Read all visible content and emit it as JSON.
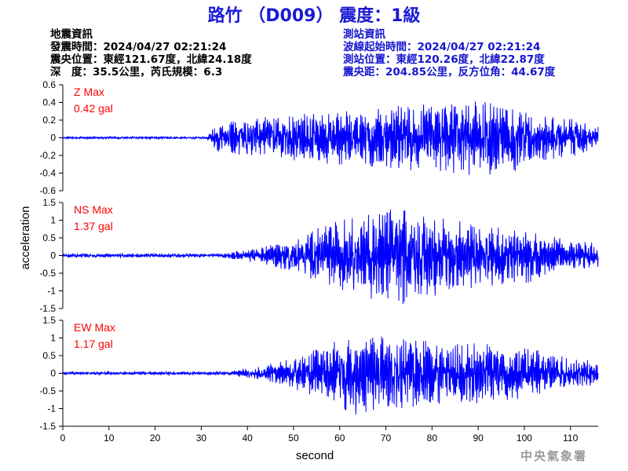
{
  "title": "路竹 （D009） 震度：1級",
  "colors": {
    "title": "#1a1ad6",
    "event": "#000000",
    "station": "#1515d0",
    "trace": "#0000ff",
    "label": "#ff0000",
    "agency": "#9a9a9a"
  },
  "event_info": {
    "heading": "地震資訊",
    "time": "發震時間：2024/04/27 02:21:24",
    "location": "震央位置：東經121.67度，北緯24.18度",
    "depth_magnitude": "深　度：35.5公里，芮氏規模：6.3"
  },
  "station_info": {
    "heading": "測站資訊",
    "wave_start": "波線起始時間：2024/04/27 02:21:24",
    "location": "測站位置：東經120.26度，北緯22.87度",
    "distance": "震央距：204.85公里，反方位角：44.67度"
  },
  "agency": "中央氣象署",
  "chart_data": {
    "type": "line",
    "xlabel": "second",
    "ylabel": "acceleration",
    "x_range": [
      0,
      116
    ],
    "x_ticks": [
      "0",
      "10",
      "20",
      "30",
      "40",
      "50",
      "60",
      "70",
      "80",
      "90",
      "100",
      "110"
    ],
    "grid": false,
    "panels": [
      {
        "label_name": "Z Max",
        "label_value": "0.42 gal",
        "ylim": [
          -0.6,
          0.6
        ],
        "y_ticks": [
          "0.6",
          "0.4",
          "0.2",
          "0",
          "-0.2",
          "-0.4",
          "-0.6"
        ],
        "max_abs": 0.42,
        "envelope": [
          [
            0,
            0.01
          ],
          [
            31,
            0.01
          ],
          [
            33,
            0.12
          ],
          [
            40,
            0.17
          ],
          [
            55,
            0.22
          ],
          [
            70,
            0.27
          ],
          [
            80,
            0.3
          ],
          [
            94,
            0.34
          ],
          [
            100,
            0.26
          ],
          [
            110,
            0.17
          ],
          [
            116,
            0.1
          ]
        ]
      },
      {
        "label_name": "NS Max",
        "label_value": "1.37 gal",
        "ylim": [
          -1.5,
          1.5
        ],
        "y_ticks": [
          "1.5",
          "1",
          "0.5",
          "0",
          "-0.5",
          "-1",
          "-1.5"
        ],
        "max_abs": 1.37,
        "envelope": [
          [
            0,
            0.03
          ],
          [
            34,
            0.03
          ],
          [
            40,
            0.1
          ],
          [
            50,
            0.25
          ],
          [
            55,
            0.45
          ],
          [
            65,
            0.65
          ],
          [
            73,
            0.8
          ],
          [
            80,
            0.65
          ],
          [
            90,
            0.5
          ],
          [
            100,
            0.45
          ],
          [
            110,
            0.25
          ],
          [
            116,
            0.2
          ]
        ]
      },
      {
        "label_name": "EW Max",
        "label_value": "1.17 gal",
        "ylim": [
          -1.5,
          1.5
        ],
        "y_ticks": [
          "1.5",
          "1",
          "0.5",
          "0",
          "-0.5",
          "-1",
          "-1.5"
        ],
        "max_abs": 1.17,
        "envelope": [
          [
            0,
            0.03
          ],
          [
            35,
            0.03
          ],
          [
            42,
            0.1
          ],
          [
            50,
            0.3
          ],
          [
            57,
            0.5
          ],
          [
            63,
            0.75
          ],
          [
            70,
            0.65
          ],
          [
            80,
            0.6
          ],
          [
            90,
            0.55
          ],
          [
            100,
            0.45
          ],
          [
            110,
            0.3
          ],
          [
            116,
            0.2
          ]
        ]
      }
    ]
  }
}
